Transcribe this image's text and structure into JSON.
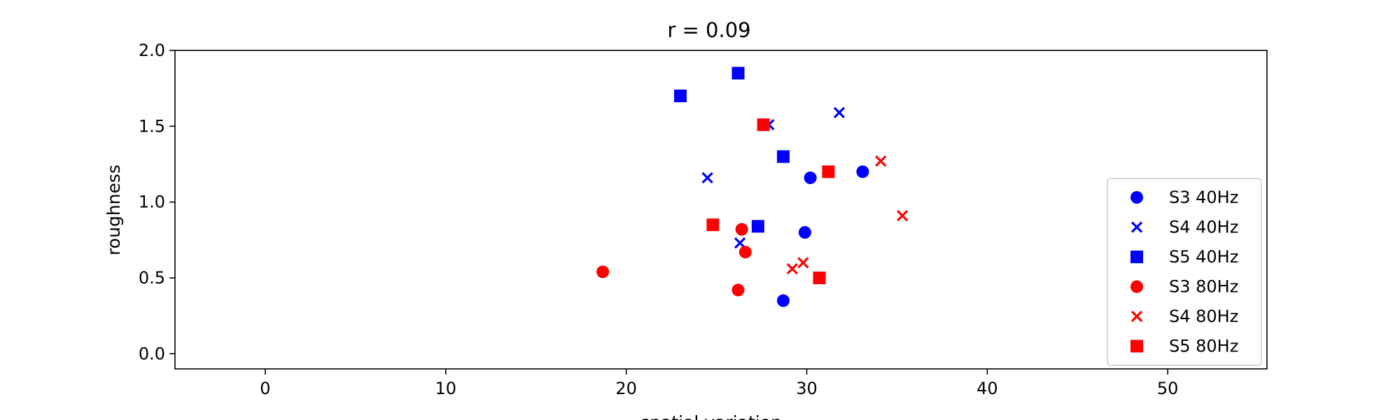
{
  "chart_data": {
    "type": "scatter",
    "title": "r = 0.09",
    "xlabel": "spatial variation",
    "ylabel": "roughness",
    "xlim": [
      -5,
      55.5
    ],
    "ylim": [
      -0.1,
      2.0
    ],
    "xticks": [
      0,
      10,
      20,
      30,
      40,
      50
    ],
    "yticks": [
      0.0,
      0.5,
      1.0,
      1.5,
      2.0
    ],
    "legend": "right",
    "grid": false,
    "series": [
      {
        "name": "S3 40Hz",
        "color": "#0000ff",
        "marker": "circle",
        "points": [
          [
            30.2,
            1.16
          ],
          [
            33.1,
            1.2
          ],
          [
            29.9,
            0.8
          ],
          [
            28.7,
            0.35
          ]
        ]
      },
      {
        "name": "S4 40Hz",
        "color": "#0000ff",
        "marker": "x",
        "points": [
          [
            31.8,
            1.59
          ],
          [
            27.9,
            1.51
          ],
          [
            24.5,
            1.16
          ],
          [
            26.3,
            0.73
          ]
        ]
      },
      {
        "name": "S5 40Hz",
        "color": "#0000ff",
        "marker": "square",
        "points": [
          [
            26.2,
            1.85
          ],
          [
            23.0,
            1.7
          ],
          [
            28.7,
            1.3
          ],
          [
            27.3,
            0.84
          ]
        ]
      },
      {
        "name": "S3 80Hz",
        "color": "#ff0000",
        "marker": "circle",
        "points": [
          [
            18.7,
            0.54
          ],
          [
            26.4,
            0.82
          ],
          [
            26.6,
            0.67
          ],
          [
            26.2,
            0.42
          ]
        ]
      },
      {
        "name": "S4 80Hz",
        "color": "#ff0000",
        "marker": "x",
        "points": [
          [
            34.1,
            1.27
          ],
          [
            35.3,
            0.91
          ],
          [
            29.8,
            0.6
          ],
          [
            29.2,
            0.56
          ]
        ]
      },
      {
        "name": "S5 80Hz",
        "color": "#ff0000",
        "marker": "square",
        "points": [
          [
            27.6,
            1.51
          ],
          [
            31.2,
            1.2
          ],
          [
            24.8,
            0.85
          ],
          [
            30.7,
            0.5
          ]
        ]
      }
    ]
  }
}
